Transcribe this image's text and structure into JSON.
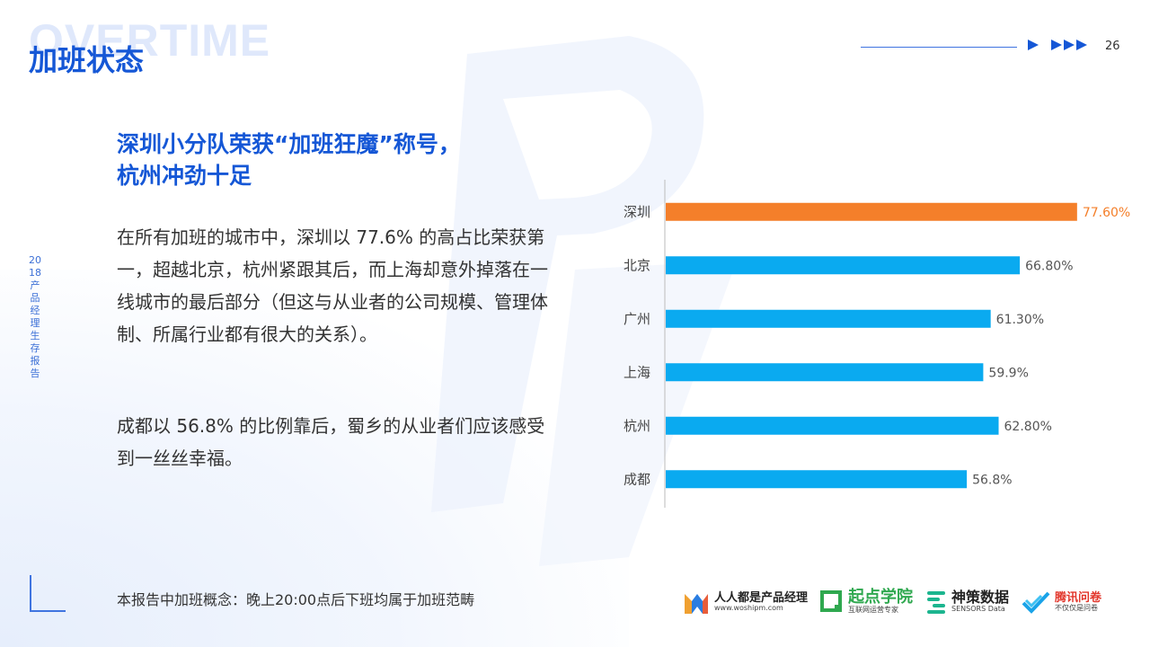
{
  "header": {
    "watermark": "OVERTIME",
    "title": "加班状态",
    "page_number": "26"
  },
  "side_label": "2018产品经理生存报告",
  "headline": {
    "line1": "深圳小分队荣获“加班狂魔”称号，",
    "line2": "杭州冲劲十足"
  },
  "body": {
    "paragraph1": "在所有加班的城市中，深圳以 77.6% 的高占比荣获第一，超越北京，杭州紧跟其后，而上海却意外掉落在一线城市的最后部分（但这与从业者的公司规模、管理体制、所属行业都有很大的关系）。",
    "paragraph2": "成都以 56.8% 的比例靠后，蜀乡的从业者们应该感受到一丝丝幸福。"
  },
  "footnote": "本报告中加班概念：晚上20:00点后下班均属于加班范畴",
  "chart_data": {
    "type": "bar",
    "orientation": "horizontal",
    "categories": [
      "深圳",
      "北京",
      "广州",
      "上海",
      "杭州",
      "成都"
    ],
    "values": [
      77.6,
      66.8,
      61.3,
      59.9,
      62.8,
      56.8
    ],
    "labels": [
      "77.60%",
      "66.80%",
      "61.30%",
      "59.9%",
      "62.80%",
      "56.8%"
    ],
    "highlight_index": 0,
    "colors": {
      "highlight": "#f47f2a",
      "default": "#0aaaf0",
      "axis": "#bbbbbb",
      "label": "#555555"
    },
    "xlim": [
      0,
      100
    ]
  },
  "logos": [
    {
      "icon": "woshipm-logo-icon",
      "name": "人人都是产品经理",
      "sub": "www.woshipm.com"
    },
    {
      "icon": "qidian-logo-icon",
      "name": "起点学院",
      "sub": "互联网运营专家"
    },
    {
      "icon": "sensors-logo-icon",
      "name": "神策数据",
      "sub": "SENSORS Data"
    },
    {
      "icon": "tencent-wenjuan-logo-icon",
      "name": "腾讯问卷",
      "sub": "不仅仅是问卷"
    }
  ],
  "colors": {
    "brand": "#1557d6",
    "text": "#333333"
  }
}
